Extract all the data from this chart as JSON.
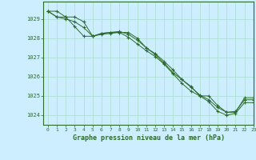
{
  "title": "Graphe pression niveau de la mer (hPa)",
  "bg_color": "#cceeff",
  "grid_color": "#aaddcc",
  "line_color": "#2d6a2d",
  "xlim": [
    -0.5,
    23
  ],
  "ylim": [
    1023.5,
    1029.9
  ],
  "yticks": [
    1024,
    1025,
    1026,
    1027,
    1028,
    1029
  ],
  "xticks": [
    0,
    1,
    2,
    3,
    4,
    5,
    6,
    7,
    8,
    9,
    10,
    11,
    12,
    13,
    14,
    15,
    16,
    17,
    18,
    19,
    20,
    21,
    22,
    23
  ],
  "series": [
    [
      1029.4,
      1029.4,
      1029.1,
      1029.1,
      1028.85,
      1028.1,
      1028.25,
      1028.3,
      1028.3,
      1028.3,
      1028.0,
      1027.5,
      1027.15,
      1026.7,
      1026.2,
      1025.85,
      1025.5,
      1025.0,
      1025.0,
      1024.5,
      1024.15,
      1024.15,
      1024.9,
      1024.9
    ],
    [
      1029.4,
      1029.1,
      1029.0,
      1028.85,
      1028.55,
      1028.1,
      1028.25,
      1028.3,
      1028.35,
      1028.2,
      1027.9,
      1027.5,
      1027.2,
      1026.8,
      1026.35,
      1025.85,
      1025.45,
      1025.05,
      1024.8,
      1024.4,
      1024.15,
      1024.2,
      1024.8,
      1024.8
    ],
    [
      1029.4,
      1029.1,
      1029.1,
      1028.6,
      1028.1,
      1028.1,
      1028.2,
      1028.25,
      1028.3,
      1028.05,
      1027.7,
      1027.35,
      1027.05,
      1026.65,
      1026.15,
      1025.65,
      1025.25,
      1025.0,
      1024.7,
      1024.2,
      1024.0,
      1024.1,
      1024.65,
      1024.65
    ]
  ]
}
